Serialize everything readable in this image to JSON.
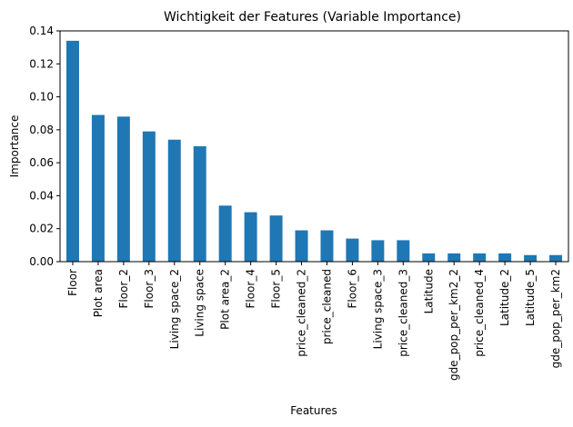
{
  "chart_data": {
    "type": "bar",
    "title": "Wichtigkeit der Features (Variable Importance)",
    "xlabel": "Features",
    "ylabel": "Importance",
    "ylim": [
      0,
      0.14
    ],
    "yticks": [
      "0.00",
      "0.02",
      "0.04",
      "0.06",
      "0.08",
      "0.10",
      "0.12",
      "0.14"
    ],
    "bar_color": "#1f77b4",
    "grid": false,
    "categories": [
      "Floor",
      "Plot area",
      "Floor_2",
      "Floor_3",
      "Living space_2",
      "Living space",
      "Plot area_2",
      "Floor_4",
      "Floor_5",
      "price_cleaned_2",
      "price_cleaned",
      "Floor_6",
      "Living space_3",
      "price_cleaned_3",
      "Latitude",
      "gde_pop_per_km2_2",
      "price_cleaned_4",
      "Latitude_2",
      "Latitude_5",
      "gde_pop_per_km2"
    ],
    "values": [
      0.134,
      0.089,
      0.088,
      0.079,
      0.074,
      0.07,
      0.034,
      0.03,
      0.028,
      0.019,
      0.019,
      0.014,
      0.013,
      0.013,
      0.005,
      0.005,
      0.005,
      0.005,
      0.004,
      0.004
    ]
  }
}
